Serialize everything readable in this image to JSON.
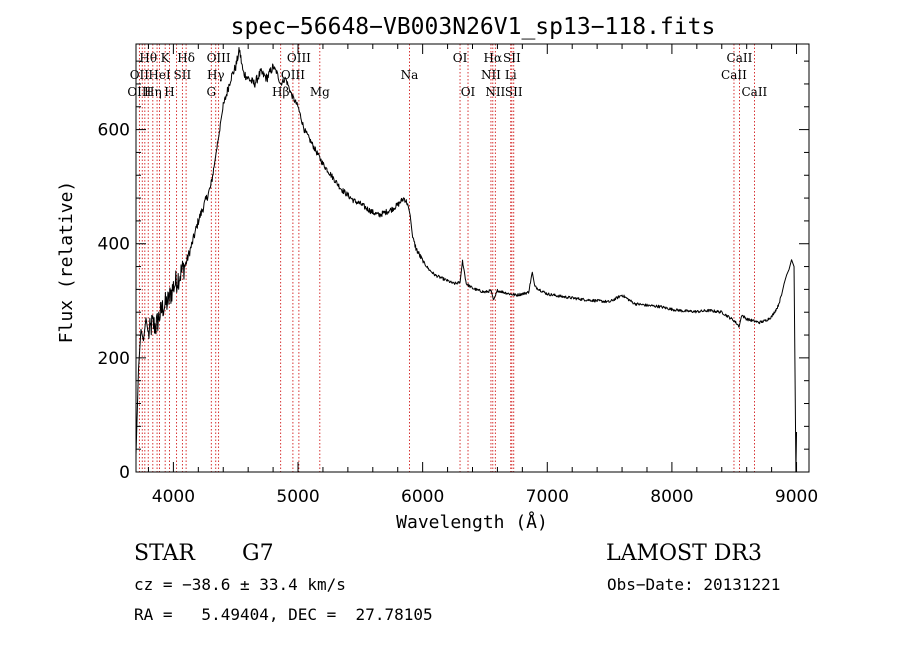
{
  "chart_data": {
    "type": "line",
    "title": "spec−56648−VB003N26V1_sp13−118.fits",
    "xlabel": "Wavelength (Å)",
    "ylabel": "Flux (relative)",
    "xlim": [
      3700,
      9100
    ],
    "ylim": [
      0,
      750
    ],
    "x_ticks": [
      4000,
      5000,
      6000,
      7000,
      8000,
      9000
    ],
    "y_ticks": [
      0,
      200,
      400,
      600
    ],
    "x_tick_labels": [
      "4000",
      "5000",
      "6000",
      "7000",
      "8000",
      "9000"
    ],
    "y_tick_labels": [
      "0",
      "200",
      "400",
      "600"
    ],
    "grid": false,
    "series": [
      {
        "name": "spectrum",
        "color": "#000000",
        "x": [
          3700,
          3720,
          3740,
          3760,
          3780,
          3800,
          3830,
          3860,
          3890,
          3920,
          3960,
          4000,
          4050,
          4100,
          4150,
          4200,
          4250,
          4300,
          4330,
          4350,
          4380,
          4400,
          4430,
          4460,
          4500,
          4530,
          4560,
          4600,
          4650,
          4700,
          4750,
          4800,
          4830,
          4860,
          4900,
          4950,
          5000,
          5050,
          5100,
          5150,
          5200,
          5250,
          5300,
          5350,
          5400,
          5450,
          5500,
          5550,
          5600,
          5650,
          5700,
          5750,
          5800,
          5850,
          5880,
          5900,
          5920,
          5950,
          6000,
          6050,
          6100,
          6150,
          6200,
          6250,
          6300,
          6320,
          6350,
          6400,
          6450,
          6500,
          6550,
          6570,
          6600,
          6650,
          6700,
          6750,
          6800,
          6850,
          6880,
          6900,
          6950,
          7000,
          7100,
          7200,
          7300,
          7400,
          7500,
          7600,
          7700,
          7800,
          7900,
          8000,
          8100,
          8200,
          8300,
          8400,
          8500,
          8540,
          8560,
          8600,
          8650,
          8700,
          8750,
          8800,
          8850,
          8880,
          8900,
          8920,
          8940,
          8960,
          8980,
          8995,
          9000
        ],
        "y": [
          30,
          180,
          250,
          230,
          270,
          240,
          260,
          255,
          275,
          290,
          300,
          325,
          345,
          365,
          400,
          440,
          470,
          500,
          540,
          570,
          615,
          640,
          665,
          690,
          710,
          740,
          700,
          690,
          680,
          700,
          690,
          710,
          700,
          680,
          690,
          660,
          640,
          600,
          580,
          560,
          540,
          525,
          510,
          495,
          485,
          475,
          470,
          462,
          455,
          450,
          455,
          460,
          468,
          480,
          470,
          450,
          410,
          390,
          370,
          355,
          345,
          340,
          335,
          330,
          332,
          370,
          330,
          322,
          318,
          315,
          318,
          300,
          318,
          315,
          312,
          310,
          312,
          315,
          350,
          325,
          318,
          312,
          308,
          305,
          302,
          300,
          298,
          310,
          295,
          292,
          290,
          285,
          282,
          281,
          283,
          280,
          265,
          255,
          275,
          268,
          265,
          262,
          265,
          272,
          290,
          310,
          330,
          345,
          355,
          372,
          360,
          0,
          70
        ]
      }
    ],
    "lines": [
      {
        "x": 3727
      },
      {
        "x": 3750
      },
      {
        "x": 3771
      },
      {
        "x": 3798
      },
      {
        "x": 3835
      },
      {
        "x": 3869
      },
      {
        "x": 3889
      },
      {
        "x": 3934
      },
      {
        "x": 3969
      },
      {
        "x": 4026
      },
      {
        "x": 4072
      },
      {
        "x": 4102
      },
      {
        "x": 4304
      },
      {
        "x": 4340
      },
      {
        "x": 4363
      },
      {
        "x": 4861
      },
      {
        "x": 4959
      },
      {
        "x": 5007
      },
      {
        "x": 5175
      },
      {
        "x": 5894
      },
      {
        "x": 6300
      },
      {
        "x": 6364
      },
      {
        "x": 6548
      },
      {
        "x": 6563
      },
      {
        "x": 6583
      },
      {
        "x": 6707
      },
      {
        "x": 6716
      },
      {
        "x": 6731
      },
      {
        "x": 8498
      },
      {
        "x": 8542
      },
      {
        "x": 8662
      }
    ],
    "annotations": [
      {
        "text": "Hθ",
        "x": 3798,
        "row": 1
      },
      {
        "text": "K",
        "x": 3934,
        "row": 1
      },
      {
        "text": "Hδ",
        "x": 4102,
        "row": 1
      },
      {
        "text": "OIII",
        "x": 4363,
        "row": 1
      },
      {
        "text": "OIII",
        "x": 5007,
        "row": 1
      },
      {
        "text": "OI",
        "x": 6300,
        "row": 1
      },
      {
        "text": "Hα",
        "x": 6563,
        "row": 1
      },
      {
        "text": "SII",
        "x": 6716,
        "row": 1
      },
      {
        "text": "CaII",
        "x": 8542,
        "row": 1
      },
      {
        "text": "OII",
        "x": 3727,
        "row": 2
      },
      {
        "text": "HeI",
        "x": 3889,
        "row": 2
      },
      {
        "text": "SII",
        "x": 4072,
        "row": 2
      },
      {
        "text": "Hγ",
        "x": 4340,
        "row": 2
      },
      {
        "text": "OIII",
        "x": 4959,
        "row": 2
      },
      {
        "text": "Na",
        "x": 5894,
        "row": 2
      },
      {
        "text": "NII",
        "x": 6548,
        "row": 2
      },
      {
        "text": "Li",
        "x": 6707,
        "row": 2
      },
      {
        "text": "CaII",
        "x": 8498,
        "row": 2
      },
      {
        "text": "OIII",
        "x": 3727,
        "row": 3
      },
      {
        "text": "Hη",
        "x": 3835,
        "row": 3
      },
      {
        "text": "H",
        "x": 3969,
        "row": 3
      },
      {
        "text": "G",
        "x": 4304,
        "row": 3
      },
      {
        "text": "Hβ",
        "x": 4861,
        "row": 3
      },
      {
        "text": "Mg",
        "x": 5175,
        "row": 3
      },
      {
        "text": "OI",
        "x": 6364,
        "row": 3
      },
      {
        "text": "NII",
        "x": 6583,
        "row": 3
      },
      {
        "text": "SII",
        "x": 6731,
        "row": 3
      },
      {
        "text": "CaII",
        "x": 8662,
        "row": 3
      }
    ]
  },
  "footer": {
    "class_label": "STAR",
    "subclass": "G7",
    "survey": "LAMOST DR3",
    "cz": "cz = −38.6 ± 33.4 km/s",
    "obs_date": "Obs−Date: 20131221",
    "radec": "RA =   5.49404, DEC =  27.78105"
  },
  "colors": {
    "spectrum": "#000000",
    "line_marker": "#cc0000",
    "axes": "#000000"
  }
}
